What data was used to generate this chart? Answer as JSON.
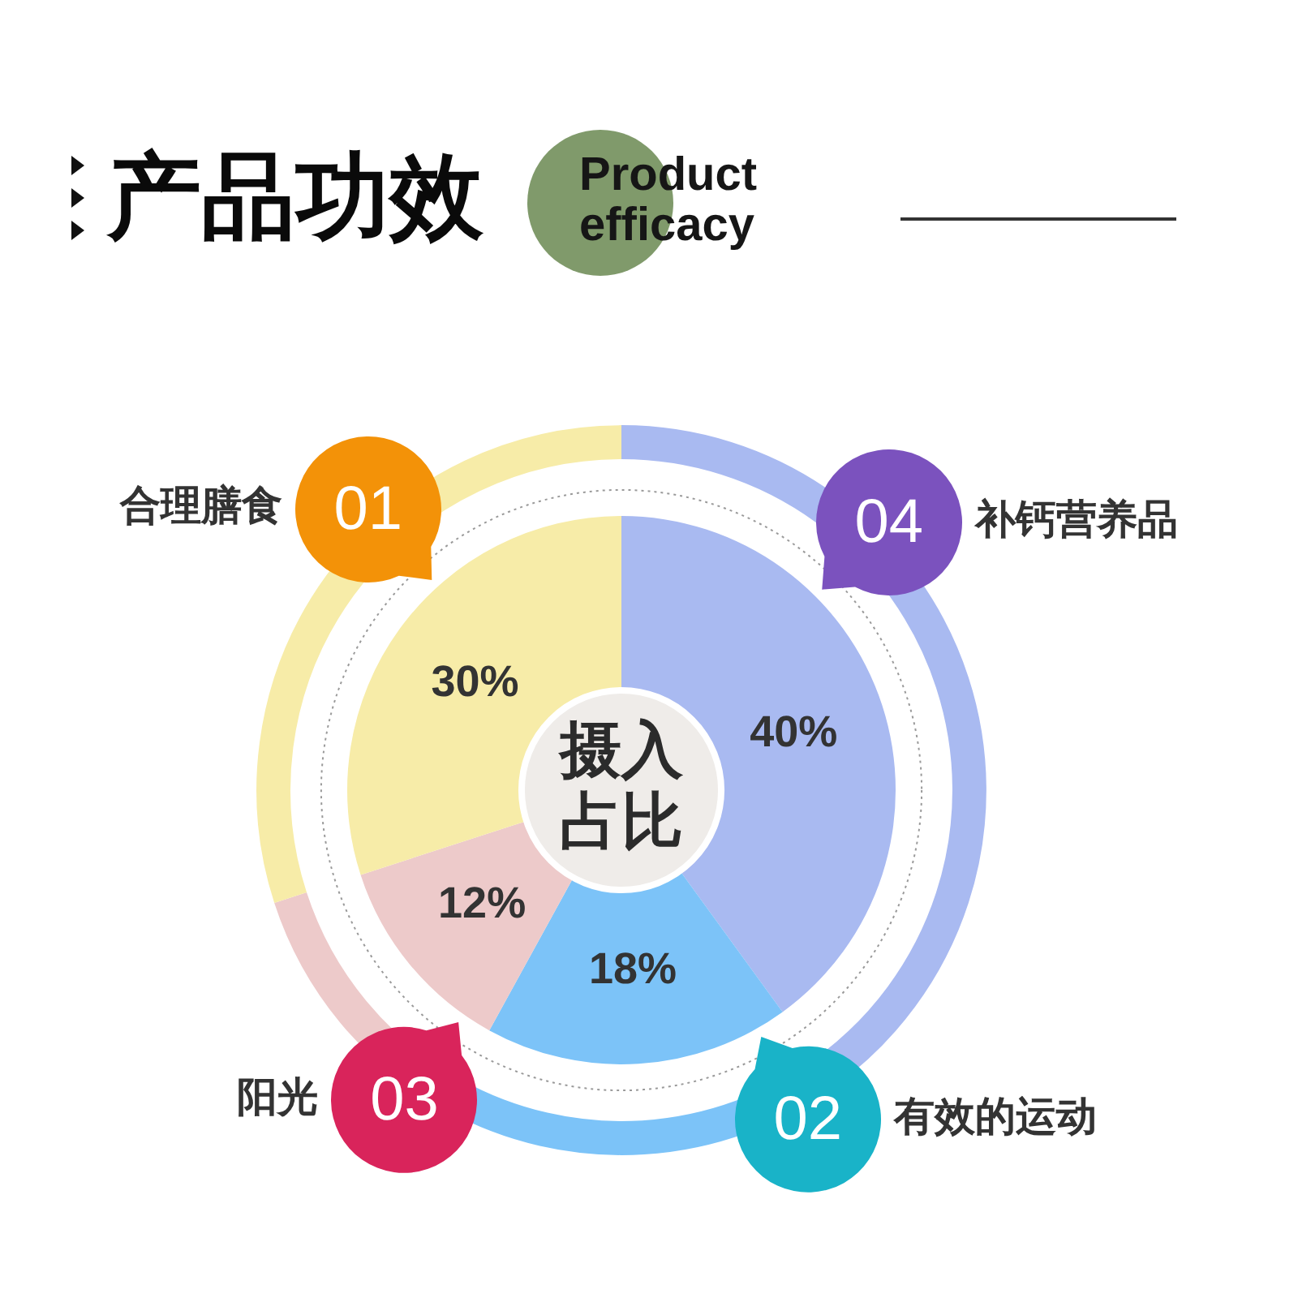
{
  "chart_data": {
    "type": "donut",
    "title": "产品功效",
    "subtitle": "Product efficacy",
    "categories": [
      "补钙营养品",
      "有效的运动",
      "阳光",
      "合理膳食"
    ],
    "values": [
      40,
      18,
      12,
      30
    ],
    "colors": [
      "#a9baf1",
      "#7cc3f8",
      "#edcaca",
      "#f7eca8"
    ],
    "value_labels": [
      "40%",
      "18%",
      "12%",
      "30%"
    ],
    "annotations": [
      "04",
      "02",
      "03",
      "01",
      "摄入占比"
    ]
  }
}
